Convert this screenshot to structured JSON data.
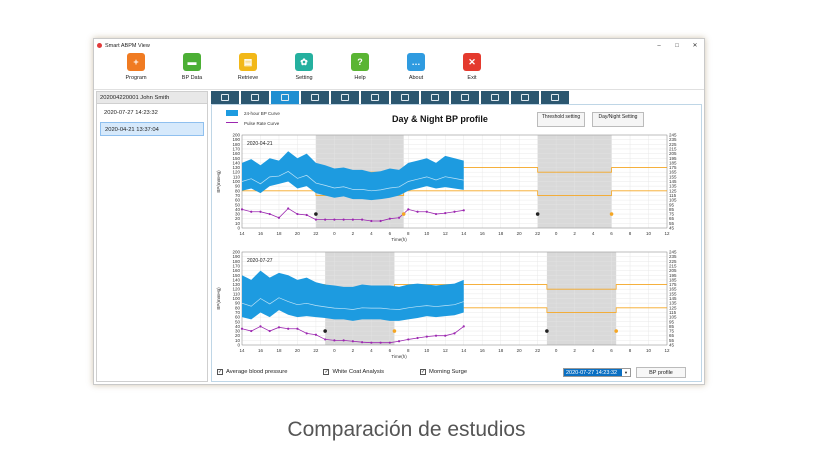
{
  "window": {
    "title": "Smart ABPM View",
    "controls": [
      "–",
      "□",
      "✕"
    ]
  },
  "toolbar": [
    {
      "label": "Program",
      "icon": "program-icon",
      "color": "#f07b22",
      "glyph": "+"
    },
    {
      "label": "BP Data",
      "icon": "folder-icon",
      "color": "#4caf35",
      "glyph": "▬"
    },
    {
      "label": "Retrieve",
      "icon": "retrieve-icon",
      "color": "#f2b818",
      "glyph": "▤"
    },
    {
      "label": "Setting",
      "icon": "gear-icon",
      "color": "#25b09f",
      "glyph": "✿"
    },
    {
      "label": "Help",
      "icon": "help-icon",
      "color": "#5ab533",
      "glyph": "?"
    },
    {
      "label": "About",
      "icon": "about-icon",
      "color": "#2f9be0",
      "glyph": "…"
    },
    {
      "label": "Exit",
      "icon": "exit-icon",
      "color": "#e43a2e",
      "glyph": "✕"
    }
  ],
  "sidebar": {
    "patient": "202004220001 John Smith",
    "sessions": [
      {
        "label": "2020-07-27 14:23:32",
        "selected": false
      },
      {
        "label": "2020-04-21 13:37:04",
        "selected": true
      }
    ]
  },
  "tabs": [
    "edit",
    "list",
    "curve",
    "scatter",
    "histogram",
    "pie",
    "summary",
    "report",
    "document",
    "image",
    "print",
    "export"
  ],
  "panel": {
    "title": "Day & Night BP profile",
    "threshold_btn": "Threshold setting",
    "daynight_btn": "Day/Night Setting",
    "legend": [
      {
        "label": "24-hour BP Curve",
        "color": "#1d9be0"
      },
      {
        "label": "Pulse Rate Curve",
        "color": "#9c27b0"
      }
    ]
  },
  "bottom": {
    "checks": [
      {
        "label": "Average blood pressure",
        "checked": true
      },
      {
        "label": "White Coat Analysis",
        "checked": true
      },
      {
        "label": "Morning Surge",
        "checked": true
      }
    ],
    "date_value": "2020-07-27 14:23:32",
    "bp_profile_btn": "BP profile"
  },
  "caption": "Comparación de estudios",
  "chart_data": [
    {
      "type": "area",
      "title": "2020-04-21",
      "xlabel": "Time(h)",
      "ylabel_left": "BP(mmHg)",
      "ylabel_right": "PR(bpm)",
      "x_ticks": [
        "14",
        "16",
        "18",
        "20",
        "22",
        "0",
        "2",
        "4",
        "6",
        "8",
        "10",
        "12",
        "14",
        "16",
        "18",
        "20",
        "22",
        "0",
        "2",
        "4",
        "6",
        "8",
        "10",
        "12"
      ],
      "ylim_left": [
        0,
        200
      ],
      "ylim_right": [
        45,
        245
      ],
      "night_bands": [
        [
          22,
          31.5
        ],
        [
          46,
          54
        ]
      ],
      "sbp_threshold": [
        130,
        130,
        120,
        130
      ],
      "series": [
        {
          "name": "SBP",
          "x": [
            14,
            15,
            16,
            17,
            18,
            19,
            20,
            21,
            22,
            23,
            24,
            25,
            26,
            27,
            28,
            29,
            30,
            31,
            32,
            33,
            34,
            35,
            36,
            37,
            38
          ],
          "values": [
            140,
            148,
            135,
            150,
            145,
            165,
            150,
            160,
            140,
            135,
            128,
            130,
            125,
            125,
            120,
            122,
            128,
            125,
            140,
            145,
            150,
            140,
            155,
            150,
            145
          ]
        },
        {
          "name": "DBP",
          "x": [
            14,
            15,
            16,
            17,
            18,
            19,
            20,
            21,
            22,
            23,
            24,
            25,
            26,
            27,
            28,
            29,
            30,
            31,
            32,
            33,
            34,
            35,
            36,
            37,
            38
          ],
          "values": [
            80,
            85,
            75,
            90,
            95,
            100,
            85,
            90,
            75,
            70,
            65,
            68,
            62,
            62,
            60,
            62,
            65,
            70,
            80,
            85,
            90,
            85,
            88,
            85,
            82
          ]
        },
        {
          "name": "PR",
          "x": [
            14,
            15,
            16,
            17,
            18,
            19,
            20,
            21,
            22,
            23,
            24,
            25,
            26,
            27,
            28,
            29,
            30,
            31,
            32,
            33,
            34,
            35,
            36,
            37,
            38
          ],
          "values": [
            40,
            35,
            35,
            30,
            22,
            42,
            30,
            28,
            18,
            18,
            18,
            18,
            18,
            18,
            15,
            15,
            20,
            22,
            40,
            35,
            35,
            30,
            32,
            35,
            38
          ]
        }
      ]
    },
    {
      "type": "area",
      "title": "2020-07-27",
      "xlabel": "Time(h)",
      "ylabel_left": "BP(mmHg)",
      "ylabel_right": "PR(bpm)",
      "x_ticks": [
        "14",
        "16",
        "18",
        "20",
        "22",
        "0",
        "2",
        "4",
        "6",
        "8",
        "10",
        "12",
        "14",
        "16",
        "18",
        "20",
        "22",
        "0",
        "2",
        "4",
        "6",
        "8",
        "10",
        "12"
      ],
      "ylim_left": [
        0,
        200
      ],
      "ylim_right": [
        45,
        245
      ],
      "night_bands": [
        [
          23,
          30.5
        ],
        [
          47,
          54.5
        ]
      ],
      "sbp_threshold": [
        130,
        130,
        120,
        130
      ],
      "series": [
        {
          "name": "SBP",
          "x": [
            14,
            15,
            16,
            17,
            18,
            19,
            20,
            21,
            22,
            23,
            24,
            25,
            26,
            27,
            28,
            29,
            30,
            31,
            32,
            33,
            34,
            35,
            36,
            37,
            38
          ],
          "values": [
            150,
            140,
            160,
            145,
            155,
            150,
            140,
            145,
            135,
            130,
            128,
            125,
            125,
            130,
            128,
            128,
            128,
            125,
            130,
            132,
            130,
            128,
            130,
            132,
            140
          ]
        },
        {
          "name": "DBP",
          "x": [
            14,
            15,
            16,
            17,
            18,
            19,
            20,
            21,
            22,
            23,
            24,
            25,
            26,
            27,
            28,
            29,
            30,
            31,
            32,
            33,
            34,
            35,
            36,
            37,
            38
          ],
          "values": [
            60,
            55,
            70,
            60,
            75,
            65,
            60,
            62,
            60,
            58,
            55,
            55,
            52,
            55,
            55,
            55,
            52,
            52,
            55,
            58,
            62,
            60,
            62,
            64,
            70
          ]
        },
        {
          "name": "PR",
          "x": [
            14,
            15,
            16,
            17,
            18,
            19,
            20,
            21,
            22,
            23,
            24,
            25,
            26,
            27,
            28,
            29,
            30,
            31,
            32,
            33,
            34,
            35,
            36,
            37,
            38
          ],
          "values": [
            35,
            30,
            40,
            30,
            38,
            35,
            35,
            25,
            22,
            12,
            10,
            10,
            8,
            6,
            5,
            5,
            5,
            8,
            12,
            15,
            18,
            20,
            20,
            25,
            40
          ]
        }
      ]
    }
  ]
}
